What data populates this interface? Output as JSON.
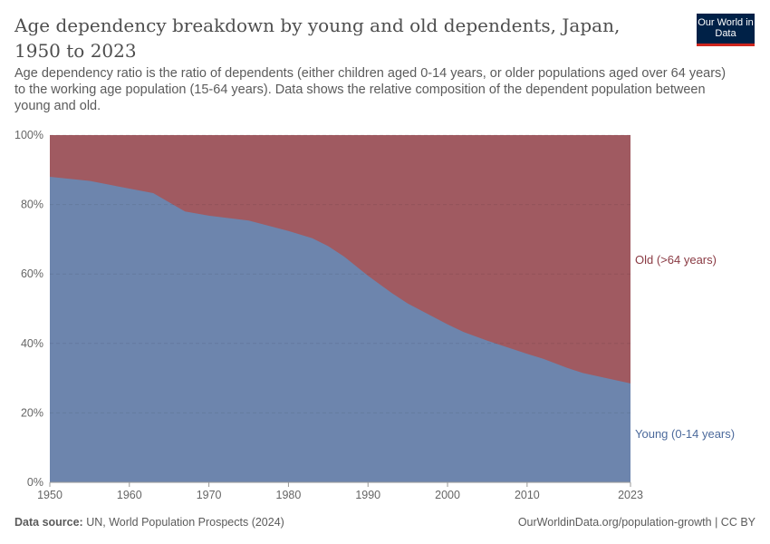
{
  "header": {
    "title": "Age dependency breakdown by young and old dependents, Japan, 1950 to 2023",
    "subtitle": "Age dependency ratio is the ratio of dependents (either children aged 0-14 years, or older populations aged over 64 years) to the working age population (15-64 years). Data shows the relative composition of the dependent population between young and old.",
    "logo": "Our World in Data"
  },
  "footer": {
    "source_label": "Data source:",
    "source": " UN, World Population Prospects (2024)",
    "url": "OurWorldinData.org/population-growth | CC BY"
  },
  "chart_data": {
    "type": "area",
    "stacked": true,
    "normalized": true,
    "x": [
      1950,
      1955,
      1960,
      1963,
      1967,
      1970,
      1975,
      1980,
      1983,
      1985,
      1987,
      1990,
      1993,
      1995,
      2000,
      2002,
      2005,
      2010,
      2012,
      2015,
      2017,
      2020,
      2023
    ],
    "series": [
      {
        "name": "Young (0-14 years)",
        "color": "#6d85ad",
        "values": [
          88,
          86.8,
          84.6,
          83.3,
          78,
          76.8,
          75.4,
          72.4,
          70.3,
          68,
          65,
          59.5,
          54.5,
          51.5,
          45.5,
          43.3,
          40.8,
          37,
          35.6,
          33,
          31.5,
          30,
          28.5
        ]
      },
      {
        "name": "Old (>64 years)",
        "color": "#a05a61",
        "values": [
          12,
          13.2,
          15.4,
          16.7,
          22,
          23.2,
          24.6,
          27.6,
          29.7,
          32,
          35,
          40.5,
          45.5,
          48.5,
          54.5,
          56.7,
          59.2,
          63,
          64.4,
          67,
          68.5,
          70,
          71.5
        ]
      }
    ],
    "yticks": [
      "0%",
      "20%",
      "40%",
      "60%",
      "80%",
      "100%"
    ],
    "xticks": [
      "1950",
      "1960",
      "1970",
      "1980",
      "1990",
      "2000",
      "2010",
      "2023"
    ],
    "ylim": [
      0,
      100
    ],
    "xlim": [
      1950,
      2023
    ],
    "grid": "horizontal dashed",
    "legend": "right, inline labels"
  }
}
